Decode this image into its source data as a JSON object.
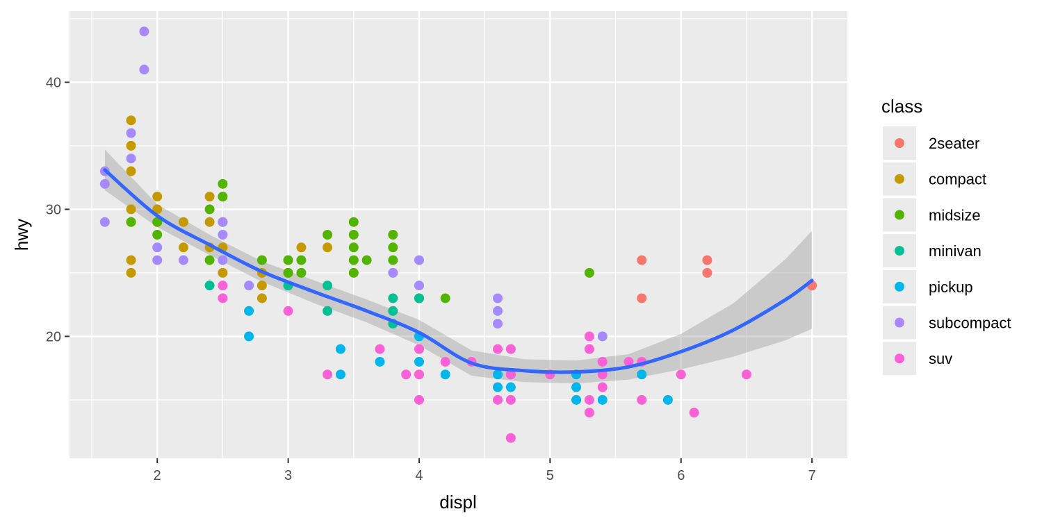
{
  "chart_data": {
    "type": "scatter",
    "xlabel": "displ",
    "ylabel": "hwy",
    "xlim": [
      1.33,
      7.27
    ],
    "ylim": [
      10.4,
      45.6
    ],
    "x_ticks": [
      2,
      3,
      4,
      5,
      6,
      7
    ],
    "y_ticks": [
      20,
      30,
      40
    ],
    "x_tick_labels": [
      "2",
      "3",
      "4",
      "5",
      "6",
      "7"
    ],
    "y_tick_labels": [
      "20",
      "30",
      "40"
    ],
    "grid": true,
    "legend": {
      "title": "class",
      "position": "right"
    },
    "series": [
      {
        "name": "2seater",
        "color": "#F8766D",
        "points": [
          [
            5.7,
            26
          ],
          [
            5.7,
            23
          ],
          [
            6.2,
            26
          ],
          [
            6.2,
            25
          ],
          [
            7.0,
            24
          ]
        ]
      },
      {
        "name": "compact",
        "color": "#C49A00",
        "points": [
          [
            1.8,
            37
          ],
          [
            1.8,
            35
          ],
          [
            1.8,
            33
          ],
          [
            1.8,
            30
          ],
          [
            1.8,
            29
          ],
          [
            1.8,
            26
          ],
          [
            1.8,
            25
          ],
          [
            2.0,
            31
          ],
          [
            2.0,
            30
          ],
          [
            2.0,
            29
          ],
          [
            2.2,
            29
          ],
          [
            2.2,
            27
          ],
          [
            2.4,
            31
          ],
          [
            2.4,
            29
          ],
          [
            2.4,
            27
          ],
          [
            2.5,
            27
          ],
          [
            2.5,
            25
          ],
          [
            2.8,
            25
          ],
          [
            2.8,
            24
          ],
          [
            2.8,
            23
          ],
          [
            3.0,
            26
          ],
          [
            3.0,
            25
          ],
          [
            3.1,
            27
          ],
          [
            3.3,
            27
          ]
        ]
      },
      {
        "name": "midsize",
        "color": "#53B400",
        "points": [
          [
            1.8,
            29
          ],
          [
            2.0,
            29
          ],
          [
            2.0,
            28
          ],
          [
            2.4,
            30
          ],
          [
            2.4,
            26
          ],
          [
            2.5,
            32
          ],
          [
            2.5,
            31
          ],
          [
            2.5,
            29
          ],
          [
            2.8,
            26
          ],
          [
            3.0,
            26
          ],
          [
            3.0,
            25
          ],
          [
            3.1,
            26
          ],
          [
            3.1,
            25
          ],
          [
            3.3,
            28
          ],
          [
            3.5,
            29
          ],
          [
            3.5,
            28
          ],
          [
            3.5,
            27
          ],
          [
            3.5,
            26
          ],
          [
            3.5,
            25
          ],
          [
            3.6,
            26
          ],
          [
            3.8,
            28
          ],
          [
            3.8,
            27
          ],
          [
            3.8,
            26
          ],
          [
            4.0,
            23
          ],
          [
            4.2,
            23
          ],
          [
            5.3,
            25
          ]
        ]
      },
      {
        "name": "minivan",
        "color": "#00C094",
        "points": [
          [
            2.4,
            24
          ],
          [
            3.0,
            24
          ],
          [
            3.3,
            24
          ],
          [
            3.3,
            22
          ],
          [
            3.8,
            23
          ],
          [
            3.8,
            22
          ],
          [
            3.8,
            21
          ],
          [
            4.0,
            23
          ]
        ]
      },
      {
        "name": "pickup",
        "color": "#00B6EB",
        "points": [
          [
            2.7,
            22
          ],
          [
            2.7,
            20
          ],
          [
            3.4,
            19
          ],
          [
            3.4,
            17
          ],
          [
            3.7,
            18
          ],
          [
            4.0,
            20
          ],
          [
            4.0,
            18
          ],
          [
            4.2,
            17
          ],
          [
            4.6,
            17
          ],
          [
            4.6,
            16
          ],
          [
            4.7,
            17
          ],
          [
            4.7,
            16
          ],
          [
            5.2,
            17
          ],
          [
            5.2,
            16
          ],
          [
            5.2,
            15
          ],
          [
            5.4,
            15
          ],
          [
            5.7,
            17
          ],
          [
            5.9,
            15
          ]
        ]
      },
      {
        "name": "subcompact",
        "color": "#A58AFF",
        "points": [
          [
            1.6,
            33
          ],
          [
            1.6,
            32
          ],
          [
            1.6,
            29
          ],
          [
            1.8,
            36
          ],
          [
            1.8,
            34
          ],
          [
            1.9,
            44
          ],
          [
            1.9,
            41
          ],
          [
            2.0,
            27
          ],
          [
            2.0,
            26
          ],
          [
            2.2,
            26
          ],
          [
            2.5,
            29
          ],
          [
            2.5,
            28
          ],
          [
            2.5,
            26
          ],
          [
            2.7,
            24
          ],
          [
            3.8,
            25
          ],
          [
            4.0,
            26
          ],
          [
            4.0,
            24
          ],
          [
            4.6,
            23
          ],
          [
            4.6,
            22
          ],
          [
            4.6,
            21
          ],
          [
            5.4,
            20
          ]
        ]
      },
      {
        "name": "suv",
        "color": "#FB61D7",
        "points": [
          [
            2.5,
            24
          ],
          [
            2.5,
            23
          ],
          [
            3.0,
            22
          ],
          [
            3.3,
            17
          ],
          [
            3.7,
            19
          ],
          [
            3.9,
            17
          ],
          [
            4.0,
            19
          ],
          [
            4.0,
            17
          ],
          [
            4.0,
            15
          ],
          [
            4.2,
            18
          ],
          [
            4.4,
            18
          ],
          [
            4.6,
            19
          ],
          [
            4.6,
            15
          ],
          [
            4.7,
            19
          ],
          [
            4.7,
            17
          ],
          [
            4.7,
            15
          ],
          [
            4.7,
            12
          ],
          [
            5.0,
            17
          ],
          [
            5.3,
            20
          ],
          [
            5.3,
            19
          ],
          [
            5.3,
            15
          ],
          [
            5.3,
            14
          ],
          [
            5.4,
            18
          ],
          [
            5.4,
            17
          ],
          [
            5.4,
            16
          ],
          [
            5.6,
            18
          ],
          [
            5.7,
            18
          ],
          [
            5.7,
            15
          ],
          [
            6.0,
            17
          ],
          [
            6.1,
            14
          ],
          [
            6.5,
            17
          ]
        ]
      }
    ],
    "smooth": {
      "color": "#3366FF",
      "band_color": "#999999",
      "x": [
        1.6,
        2.0,
        2.4,
        2.8,
        3.2,
        3.6,
        4.0,
        4.4,
        4.8,
        5.2,
        5.6,
        6.0,
        6.4,
        6.8,
        7.0
      ],
      "y": [
        33.1,
        29.5,
        27.2,
        25.1,
        23.5,
        22.0,
        20.3,
        17.9,
        17.3,
        17.2,
        17.6,
        18.8,
        20.5,
        22.9,
        24.4
      ],
      "lower": [
        31.5,
        28.6,
        26.4,
        24.3,
        22.6,
        21.1,
        19.3,
        16.9,
        16.4,
        16.3,
        16.6,
        17.4,
        18.4,
        19.7,
        20.6
      ],
      "upper": [
        34.7,
        30.4,
        28.0,
        25.9,
        24.4,
        22.9,
        21.3,
        18.9,
        18.2,
        18.1,
        18.6,
        20.2,
        22.6,
        26.1,
        28.3
      ]
    }
  }
}
